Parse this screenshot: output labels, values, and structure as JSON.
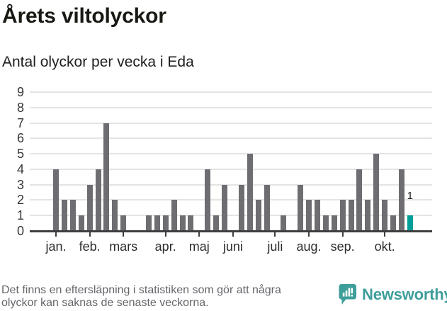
{
  "header": {
    "title": "Årets viltolyckor",
    "subtitle": "Antal olyckor per vecka i Eda"
  },
  "chart_data": {
    "type": "bar",
    "title": "Årets viltolyckor",
    "subtitle": "Antal olyckor per vecka i Eda",
    "x_unit": "week",
    "values": [
      4,
      2,
      2,
      1,
      3,
      4,
      7,
      2,
      1,
      0,
      0,
      1,
      1,
      1,
      2,
      1,
      1,
      0,
      4,
      1,
      3,
      0,
      3,
      5,
      2,
      3,
      0,
      1,
      0,
      3,
      2,
      2,
      1,
      1,
      2,
      2,
      4,
      2,
      5,
      2,
      1,
      4,
      1
    ],
    "ylim": [
      0,
      9
    ],
    "yticks": [
      0,
      1,
      2,
      3,
      4,
      5,
      6,
      7,
      8,
      9
    ],
    "grid": true,
    "month_ticks": [
      {
        "label": "jan.",
        "week": 1
      },
      {
        "label": "feb.",
        "week": 5
      },
      {
        "label": "mars",
        "week": 9
      },
      {
        "label": "apr.",
        "week": 14
      },
      {
        "label": "maj",
        "week": 18
      },
      {
        "label": "juni",
        "week": 22
      },
      {
        "label": "juli",
        "week": 27
      },
      {
        "label": "aug.",
        "week": 31
      },
      {
        "label": "sep.",
        "week": 35
      },
      {
        "label": "okt.",
        "week": 40
      }
    ],
    "highlight_last_bar": true,
    "last_bar_label": "1"
  },
  "colors": {
    "bar": "#6d6d72",
    "accent": "#009e99",
    "grid": "#e4e4e4",
    "axis": "#3e3e3e",
    "brand": "#3d9e9a"
  },
  "footer": {
    "note_line1": "Det finns en eftersläpning i statistiken som gör att några",
    "note_line2": "olyckor kan saknas de senaste veckorna.",
    "brand": "Newsworthy"
  }
}
